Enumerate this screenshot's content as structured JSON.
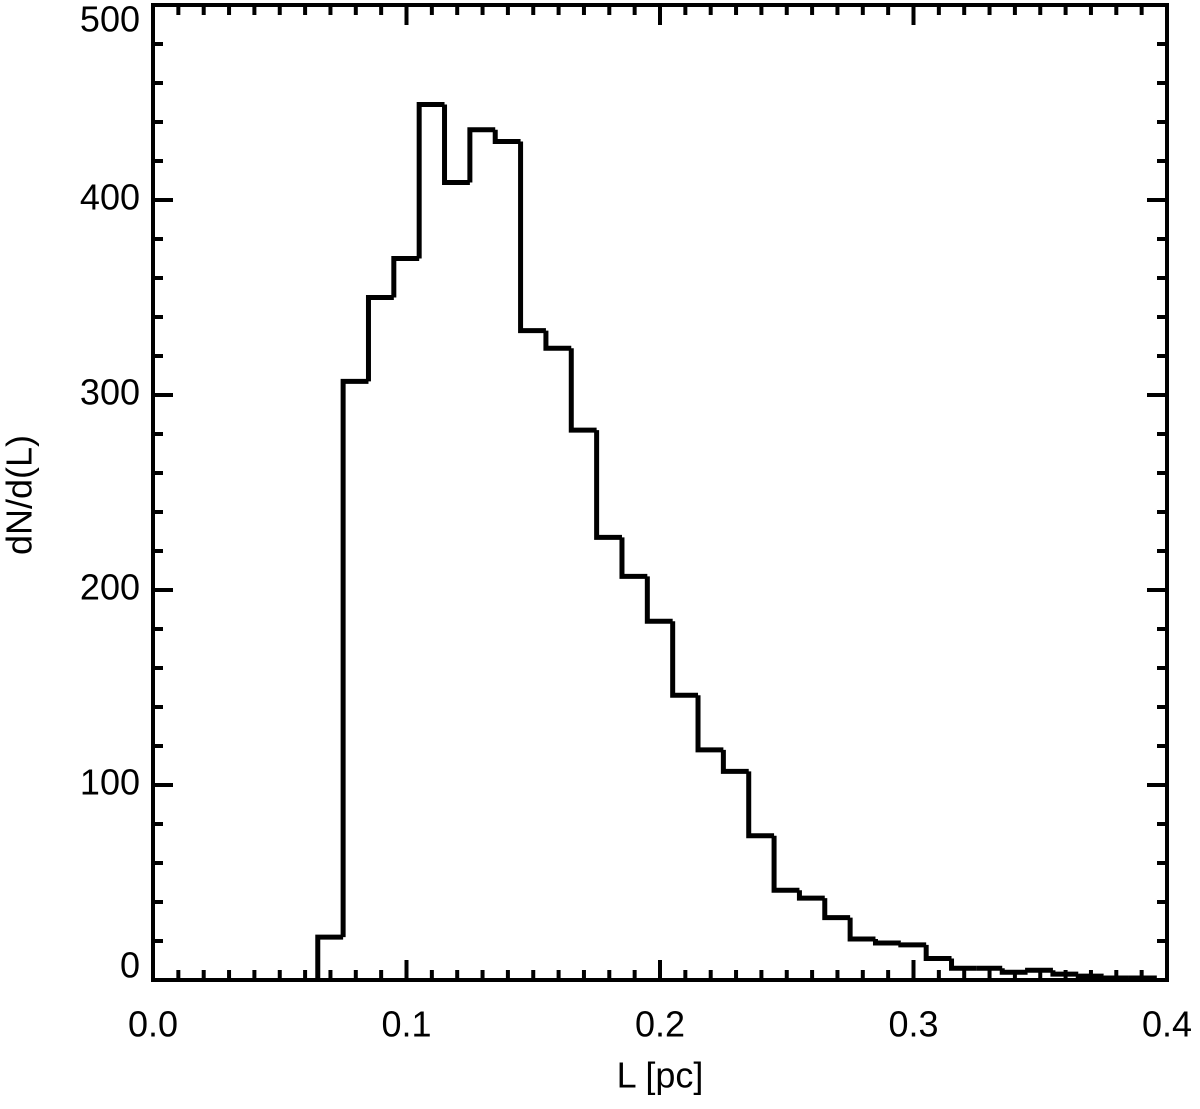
{
  "chart_data": {
    "type": "histogram",
    "xlabel": "L [pc]",
    "ylabel": "dN/d(L)",
    "bins": [
      0.065,
      0.075,
      0.085,
      0.095,
      0.105,
      0.115,
      0.125,
      0.135,
      0.145,
      0.155,
      0.165,
      0.175,
      0.185,
      0.195,
      0.205,
      0.215,
      0.225,
      0.235,
      0.245,
      0.255,
      0.265,
      0.275,
      0.285,
      0.295,
      0.305,
      0.315,
      0.325,
      0.335,
      0.345,
      0.355,
      0.365,
      0.375,
      0.385,
      0.395
    ],
    "values": [
      22,
      307,
      350,
      370,
      449,
      409,
      436,
      430,
      333,
      324,
      282,
      227,
      207,
      184,
      146,
      118,
      107,
      74,
      46,
      42,
      32,
      21,
      19,
      18,
      11,
      6,
      6,
      4,
      5,
      3,
      2,
      1,
      1
    ],
    "color": "#000000",
    "xlim": [
      0,
      0.4
    ],
    "ylim": [
      0,
      500
    ],
    "xticks": [
      {
        "value": 0,
        "label": "0.0"
      },
      0.1,
      0.2,
      0.3,
      0.4
    ],
    "yticks": [
      0,
      100,
      200,
      300,
      400,
      500
    ]
  }
}
